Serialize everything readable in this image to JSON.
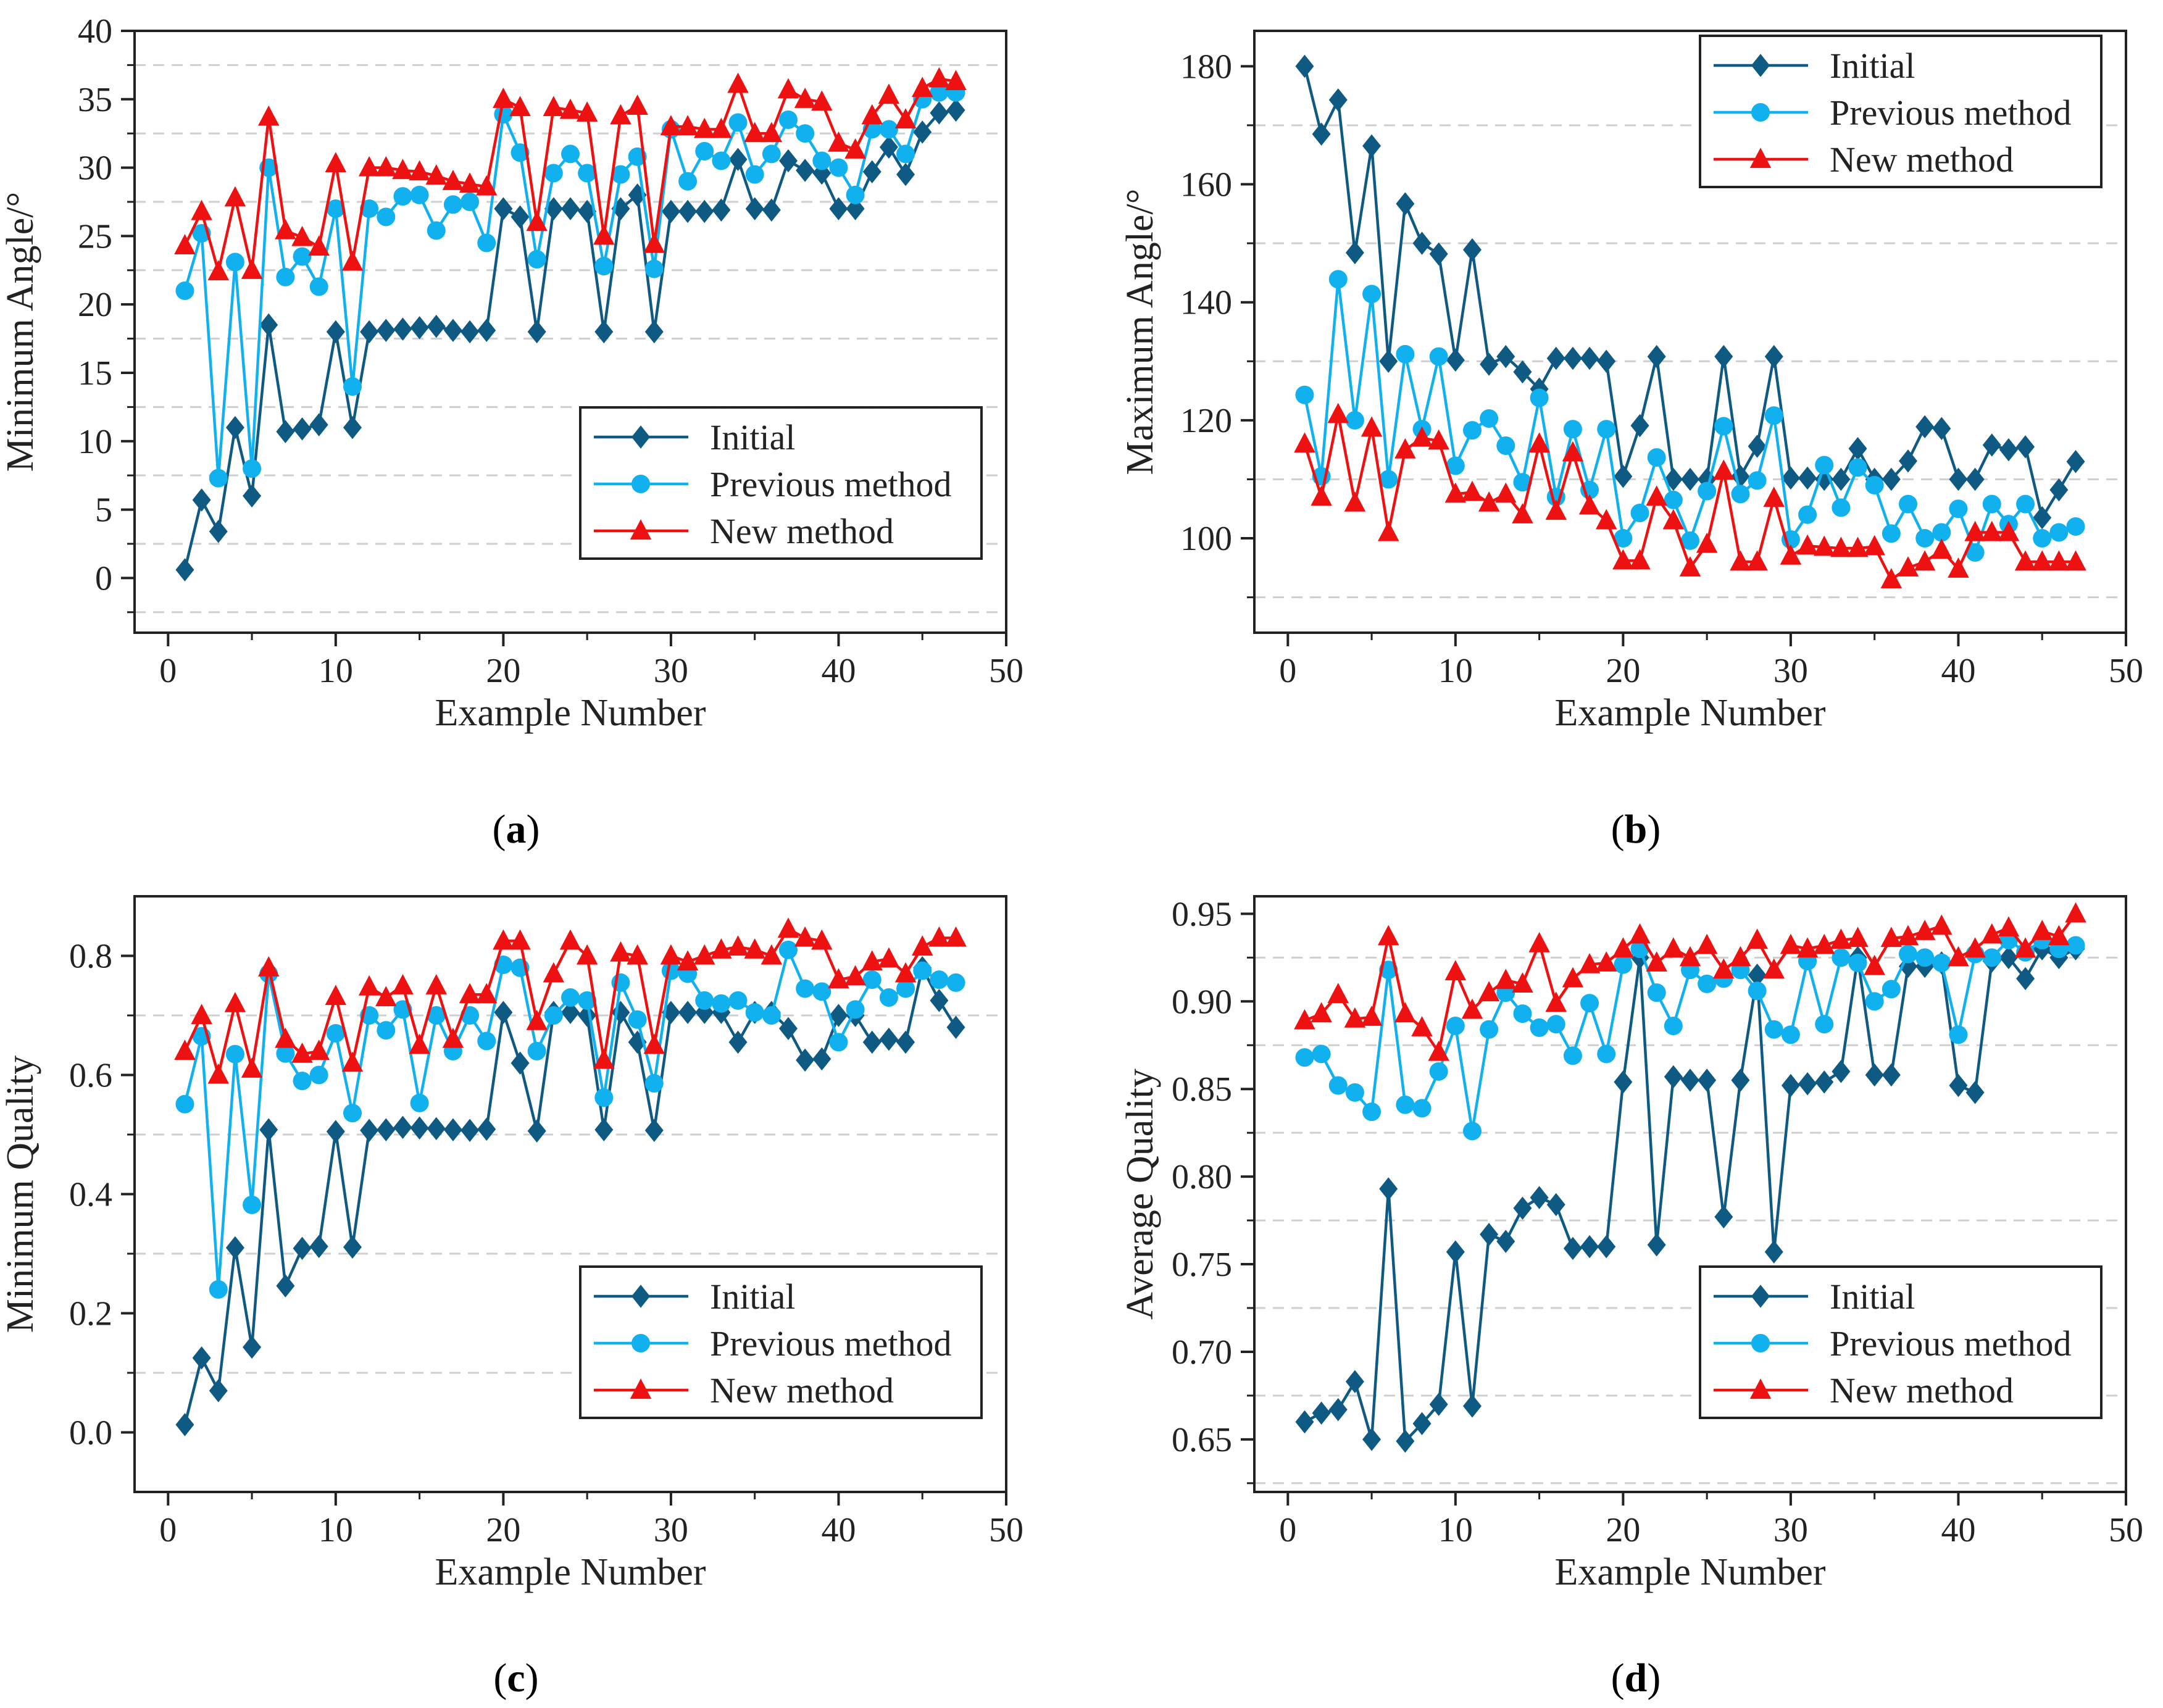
{
  "colors": {
    "initial": "#0f5a82",
    "previous": "#10b1ee",
    "new": "#ee1111",
    "grid": "#cfcfcf",
    "axis": "#222222"
  },
  "legend": {
    "initial": "Initial",
    "previous": "Previous method",
    "new": "New method"
  },
  "chart_data": [
    {
      "type": "line",
      "caption_letter": "a",
      "xlabel": "Example Number",
      "ylabel": "Minimum Angle/°",
      "xlim": [
        -2,
        50
      ],
      "ylim": [
        -4,
        40
      ],
      "xticks": [
        "0",
        "10",
        "20",
        "30",
        "40",
        "50"
      ],
      "yticks": [
        "0",
        "5",
        "10",
        "15",
        "20",
        "25",
        "30",
        "35",
        "40"
      ],
      "legend_position": "lower-right",
      "x": [
        1,
        2,
        3,
        4,
        5,
        6,
        7,
        8,
        9,
        10,
        11,
        12,
        13,
        14,
        15,
        16,
        17,
        18,
        19,
        20,
        21,
        22,
        23,
        24,
        25,
        26,
        27,
        28,
        29,
        30,
        31,
        32,
        33,
        34,
        35,
        36,
        37,
        38,
        39,
        40,
        41,
        42,
        43,
        44,
        45,
        46,
        47
      ],
      "series": [
        {
          "name": "Initial",
          "values": [
            0.6,
            5.7,
            3.4,
            11,
            6,
            18.5,
            10.7,
            10.9,
            11.2,
            18,
            11,
            18,
            18.1,
            18.2,
            18.3,
            18.4,
            18.1,
            18,
            18.1,
            27,
            26.4,
            18,
            27,
            27,
            26.8,
            18,
            27,
            28,
            18,
            26.8,
            26.8,
            26.8,
            26.9,
            30.6,
            27,
            26.9,
            30.5,
            29.8,
            29.6,
            27,
            27,
            29.7,
            31.5,
            29.5,
            32.6,
            34,
            34.2
          ]
        },
        {
          "name": "Previous method",
          "values": [
            21,
            25.2,
            7.3,
            23.1,
            8,
            30,
            22,
            23.5,
            21.3,
            27,
            14,
            27,
            26.4,
            27.9,
            28,
            25.4,
            27.3,
            27.5,
            24.5,
            33.9,
            31.1,
            23.3,
            29.6,
            31,
            29.6,
            22.8,
            29.5,
            30.8,
            22.6,
            32.8,
            29,
            31.2,
            30.5,
            33.3,
            29.5,
            31,
            33.5,
            32.5,
            30.5,
            30,
            28,
            32.8,
            32.8,
            31,
            35,
            35.5,
            35.5
          ]
        },
        {
          "name": "New method",
          "values": [
            24.3,
            26.8,
            22.4,
            27.8,
            22.5,
            33.7,
            25.4,
            24.9,
            24.2,
            30.3,
            23.1,
            30,
            30,
            29.8,
            29.7,
            29.4,
            29,
            28.8,
            28.6,
            35,
            34.4,
            26,
            34.4,
            34.2,
            34,
            25,
            33.8,
            34.5,
            24.4,
            33,
            33,
            32.8,
            32.8,
            36.1,
            32.5,
            32.5,
            35.7,
            35,
            34.8,
            31.8,
            31.3,
            33.8,
            35.3,
            33.5,
            35.8,
            36.5,
            36.3
          ]
        }
      ]
    },
    {
      "type": "line",
      "caption_letter": "b",
      "xlabel": "Example Number",
      "ylabel": "Maximum Angle/°",
      "xlim": [
        -2,
        50
      ],
      "ylim": [
        84,
        186
      ],
      "xticks": [
        "0",
        "10",
        "20",
        "30",
        "40",
        "50"
      ],
      "yticks": [
        "100",
        "120",
        "140",
        "160",
        "180"
      ],
      "legend_position": "top-right",
      "x": [
        1,
        2,
        3,
        4,
        5,
        6,
        7,
        8,
        9,
        10,
        11,
        12,
        13,
        14,
        15,
        16,
        17,
        18,
        19,
        20,
        21,
        22,
        23,
        24,
        25,
        26,
        27,
        28,
        29,
        30,
        31,
        32,
        33,
        34,
        35,
        36,
        37,
        38,
        39,
        40,
        41,
        42,
        43,
        44,
        45,
        46,
        47
      ],
      "series": [
        {
          "name": "Initial",
          "values": [
            180,
            168.5,
            174.3,
            148.4,
            166.5,
            130,
            156.7,
            150,
            148.2,
            130.2,
            148.9,
            129.5,
            130.8,
            128.2,
            125.3,
            130.5,
            130.5,
            130.5,
            130,
            110.5,
            119.1,
            130.8,
            110,
            110,
            110,
            130.8,
            110.5,
            115.6,
            130.8,
            110.2,
            110.2,
            110,
            110,
            115.2,
            110,
            110,
            113.1,
            118.9,
            118.6,
            110,
            110,
            115.8,
            115,
            115.5,
            103.5,
            108.2,
            113
          ]
        },
        {
          "name": "Previous method",
          "values": [
            124.3,
            110.5,
            143.9,
            120,
            141.4,
            110,
            131.2,
            118.5,
            130.8,
            112.3,
            118.3,
            120.3,
            115.7,
            109.5,
            123.8,
            107,
            118.5,
            108.2,
            118.5,
            100,
            104.3,
            113.7,
            106.5,
            99.6,
            108,
            119,
            107.5,
            109.8,
            120.8,
            99.8,
            104,
            112.4,
            105.2,
            112,
            109,
            100.8,
            105.8,
            100,
            101,
            105,
            97.6,
            105.8,
            102.4,
            105.8,
            100,
            101,
            102
          ]
        },
        {
          "name": "New method",
          "values": [
            116,
            107,
            121,
            106,
            118.7,
            101,
            115,
            117,
            116.5,
            107.5,
            107.8,
            106,
            107.5,
            104,
            116,
            104.6,
            114.5,
            105.5,
            103,
            96.2,
            96.2,
            107,
            103,
            95,
            99,
            111.4,
            96,
            96,
            106.8,
            97,
            98.7,
            98.5,
            98.3,
            98.3,
            98.6,
            93,
            95,
            96,
            98,
            94.8,
            101,
            101,
            101,
            96,
            96,
            96,
            96
          ]
        }
      ]
    },
    {
      "type": "line",
      "caption_letter": "c",
      "xlabel": "Example Number",
      "ylabel": "Minimum Quality",
      "xlim": [
        -2,
        50
      ],
      "ylim": [
        -0.1,
        0.9
      ],
      "xticks": [
        "0",
        "10",
        "20",
        "30",
        "40",
        "50"
      ],
      "yticks": [
        "0.0",
        "0.2",
        "0.4",
        "0.6",
        "0.8"
      ],
      "legend_position": "lower-right",
      "x": [
        1,
        2,
        3,
        4,
        5,
        6,
        7,
        8,
        9,
        10,
        11,
        12,
        13,
        14,
        15,
        16,
        17,
        18,
        19,
        20,
        21,
        22,
        23,
        24,
        25,
        26,
        27,
        28,
        29,
        30,
        31,
        32,
        33,
        34,
        35,
        36,
        37,
        38,
        39,
        40,
        41,
        42,
        43,
        44,
        45,
        46,
        47
      ],
      "series": [
        {
          "name": "Initial",
          "values": [
            0.013,
            0.125,
            0.07,
            0.31,
            0.143,
            0.508,
            0.246,
            0.309,
            0.312,
            0.505,
            0.311,
            0.507,
            0.508,
            0.512,
            0.511,
            0.51,
            0.508,
            0.507,
            0.509,
            0.705,
            0.62,
            0.506,
            0.705,
            0.705,
            0.7,
            0.508,
            0.705,
            0.655,
            0.507,
            0.705,
            0.705,
            0.705,
            0.705,
            0.655,
            0.705,
            0.705,
            0.678,
            0.625,
            0.627,
            0.7,
            0.7,
            0.655,
            0.66,
            0.655,
            0.78,
            0.725,
            0.68
          ]
        },
        {
          "name": "Previous method",
          "values": [
            0.551,
            0.665,
            0.24,
            0.635,
            0.382,
            0.77,
            0.636,
            0.59,
            0.6,
            0.67,
            0.536,
            0.7,
            0.675,
            0.71,
            0.553,
            0.7,
            0.64,
            0.7,
            0.657,
            0.785,
            0.78,
            0.64,
            0.7,
            0.73,
            0.725,
            0.562,
            0.755,
            0.693,
            0.586,
            0.775,
            0.77,
            0.725,
            0.72,
            0.725,
            0.705,
            0.7,
            0.81,
            0.745,
            0.74,
            0.655,
            0.71,
            0.76,
            0.73,
            0.745,
            0.775,
            0.76,
            0.755
          ]
        },
        {
          "name": "New method",
          "values": [
            0.64,
            0.7,
            0.6,
            0.72,
            0.61,
            0.78,
            0.66,
            0.635,
            0.64,
            0.732,
            0.62,
            0.748,
            0.73,
            0.75,
            0.65,
            0.75,
            0.66,
            0.735,
            0.735,
            0.825,
            0.825,
            0.69,
            0.77,
            0.825,
            0.8,
            0.625,
            0.805,
            0.8,
            0.65,
            0.8,
            0.79,
            0.8,
            0.81,
            0.815,
            0.81,
            0.8,
            0.845,
            0.83,
            0.825,
            0.76,
            0.765,
            0.79,
            0.795,
            0.77,
            0.815,
            0.83,
            0.83
          ]
        }
      ]
    },
    {
      "type": "line",
      "caption_letter": "d",
      "xlabel": "Example Number",
      "ylabel": "Average Quality",
      "xlim": [
        -2,
        50
      ],
      "ylim": [
        0.62,
        0.96
      ],
      "xticks": [
        "0",
        "10",
        "20",
        "30",
        "40",
        "50"
      ],
      "yticks": [
        "0.65",
        "0.70",
        "0.75",
        "0.80",
        "0.85",
        "0.90",
        "0.95"
      ],
      "legend_position": "lower-right",
      "x": [
        1,
        2,
        3,
        4,
        5,
        6,
        7,
        8,
        9,
        10,
        11,
        12,
        13,
        14,
        15,
        16,
        17,
        18,
        19,
        20,
        21,
        22,
        23,
        24,
        25,
        26,
        27,
        28,
        29,
        30,
        31,
        32,
        33,
        34,
        35,
        36,
        37,
        38,
        39,
        40,
        41,
        42,
        43,
        44,
        45,
        46,
        47
      ],
      "series": [
        {
          "name": "Initial",
          "values": [
            0.66,
            0.665,
            0.667,
            0.683,
            0.65,
            0.793,
            0.649,
            0.659,
            0.67,
            0.757,
            0.669,
            0.767,
            0.763,
            0.782,
            0.788,
            0.784,
            0.759,
            0.76,
            0.76,
            0.854,
            0.925,
            0.761,
            0.857,
            0.855,
            0.855,
            0.777,
            0.855,
            0.915,
            0.757,
            0.852,
            0.853,
            0.854,
            0.86,
            0.925,
            0.858,
            0.858,
            0.92,
            0.92,
            0.922,
            0.852,
            0.848,
            0.923,
            0.925,
            0.913,
            0.93,
            0.925,
            0.93
          ]
        },
        {
          "name": "Previous method",
          "values": [
            0.868,
            0.87,
            0.852,
            0.848,
            0.837,
            0.918,
            0.841,
            0.839,
            0.86,
            0.886,
            0.826,
            0.884,
            0.905,
            0.893,
            0.885,
            0.887,
            0.869,
            0.899,
            0.87,
            0.921,
            0.93,
            0.905,
            0.886,
            0.918,
            0.91,
            0.913,
            0.918,
            0.906,
            0.884,
            0.881,
            0.923,
            0.887,
            0.925,
            0.922,
            0.9,
            0.907,
            0.927,
            0.925,
            0.922,
            0.881,
            0.927,
            0.925,
            0.935,
            0.928,
            0.935,
            0.93,
            0.932
          ]
        },
        {
          "name": "New method",
          "values": [
            0.889,
            0.893,
            0.904,
            0.89,
            0.891,
            0.937,
            0.893,
            0.885,
            0.871,
            0.917,
            0.895,
            0.905,
            0.912,
            0.91,
            0.933,
            0.899,
            0.913,
            0.921,
            0.922,
            0.93,
            0.938,
            0.922,
            0.93,
            0.925,
            0.932,
            0.918,
            0.925,
            0.935,
            0.918,
            0.932,
            0.93,
            0.932,
            0.935,
            0.936,
            0.92,
            0.936,
            0.937,
            0.94,
            0.943,
            0.925,
            0.93,
            0.938,
            0.942,
            0.93,
            0.94,
            0.937,
            0.95
          ]
        }
      ]
    }
  ]
}
